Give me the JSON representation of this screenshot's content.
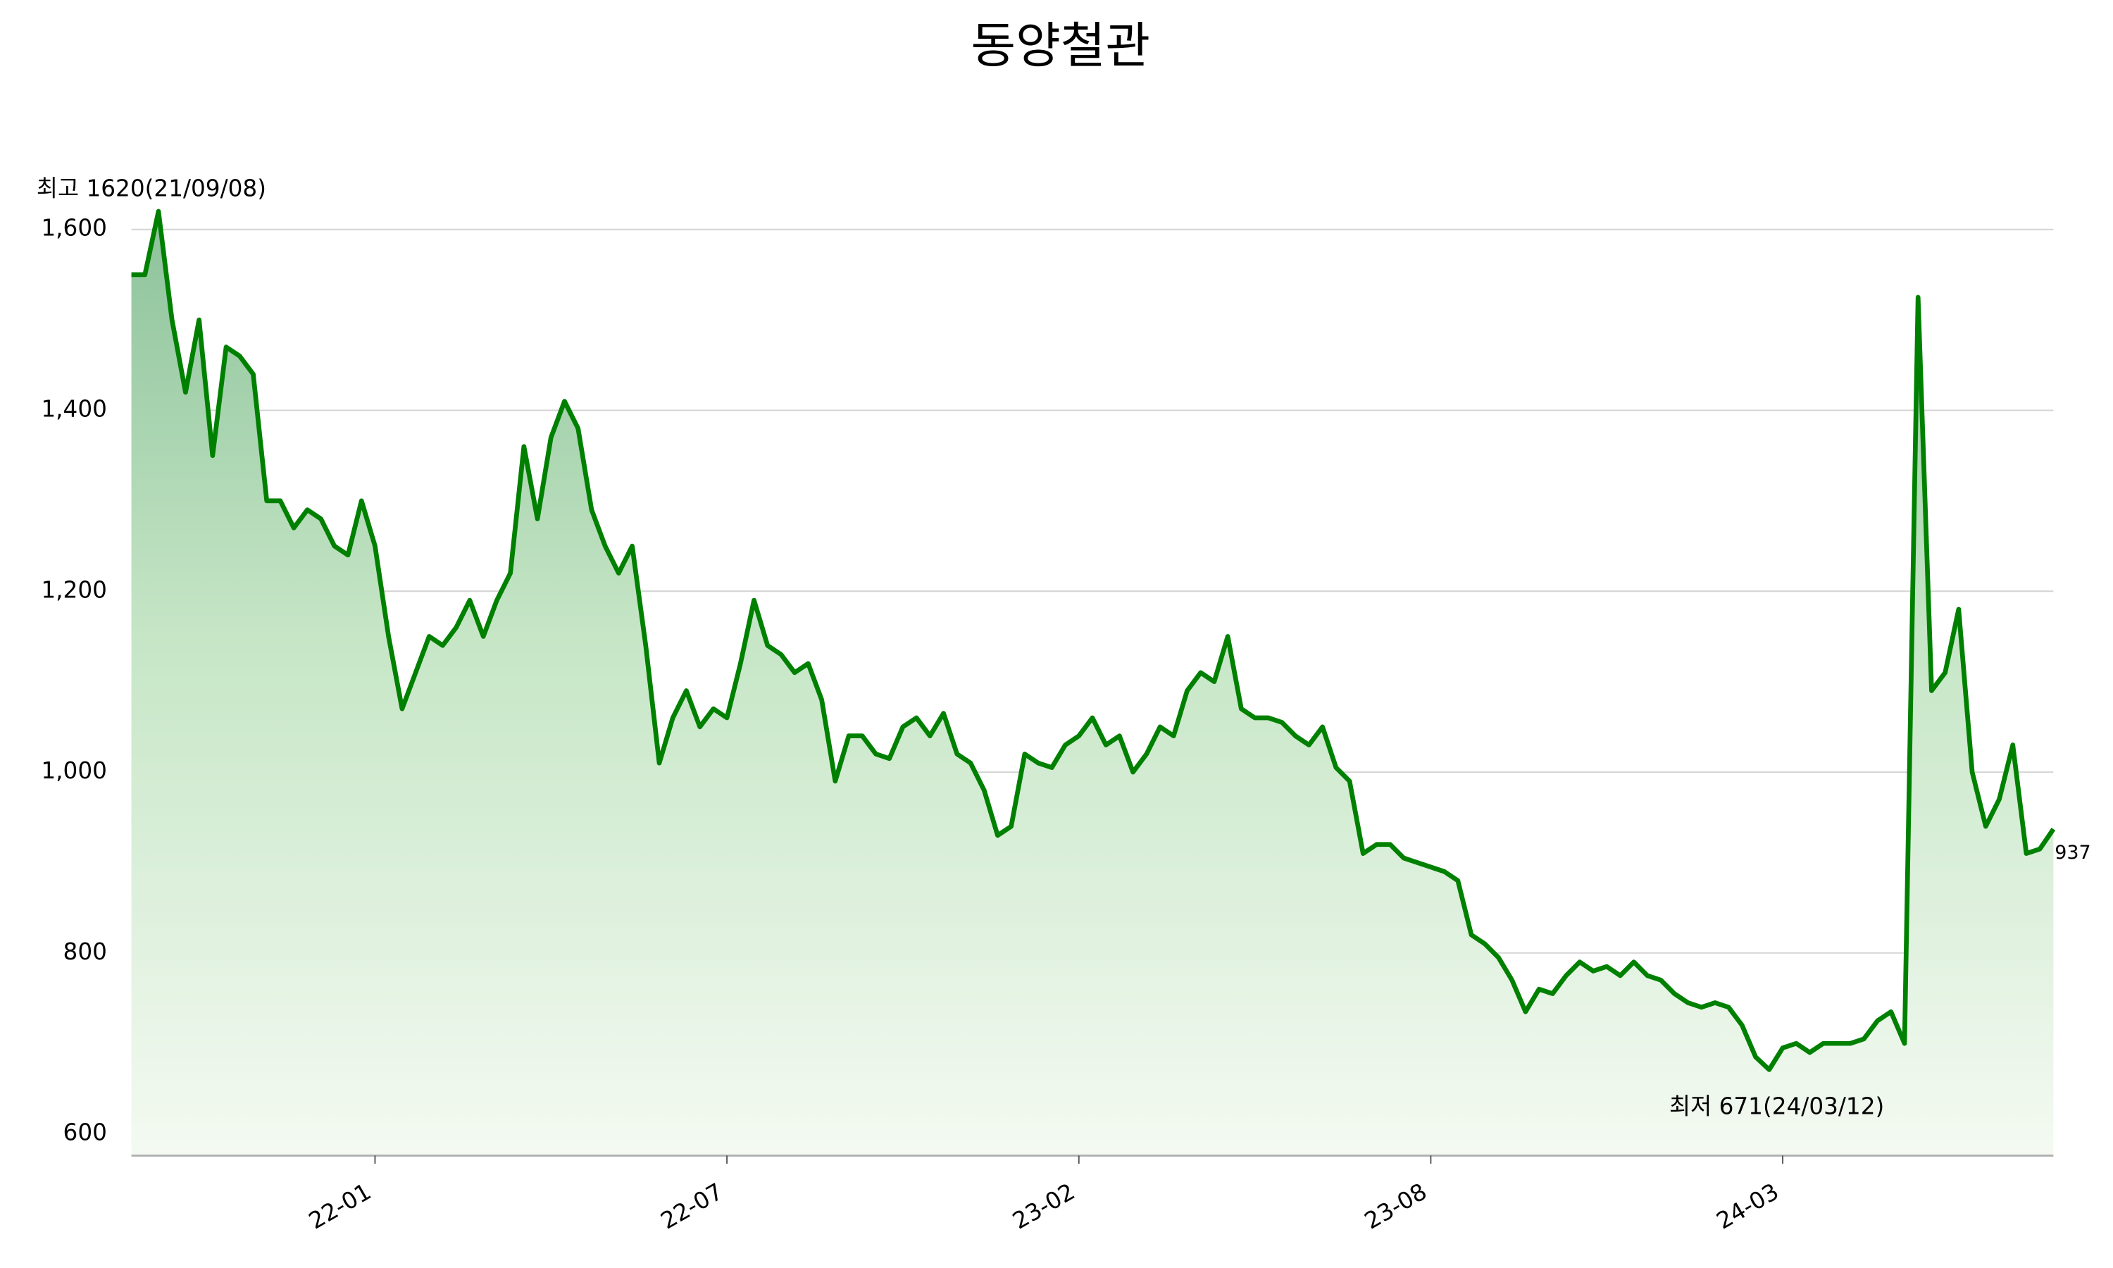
{
  "chart_data": {
    "type": "line",
    "title": "동양철관",
    "categories": [
      null,
      null,
      null,
      null,
      null,
      null,
      null,
      null,
      null,
      null,
      null,
      null,
      null,
      null,
      null,
      null,
      null,
      null,
      "22-01",
      null,
      null,
      null,
      null,
      null,
      null,
      null,
      null,
      null,
      null,
      null,
      null,
      null,
      null,
      null,
      null,
      null,
      null,
      null,
      null,
      null,
      null,
      null,
      null,
      null,
      "22-07",
      null,
      null,
      null,
      null,
      null,
      null,
      null,
      null,
      null,
      null,
      null,
      null,
      null,
      null,
      null,
      null,
      null,
      null,
      null,
      null,
      null,
      null,
      null,
      null,
      null,
      "23-02",
      null,
      null,
      null,
      null,
      null,
      null,
      null,
      null,
      null,
      null,
      null,
      null,
      null,
      null,
      null,
      null,
      null,
      null,
      null,
      null,
      null,
      null,
      null,
      null,
      null,
      "23-08",
      null,
      null,
      null,
      null,
      null,
      null,
      null,
      null,
      null,
      null,
      null,
      null,
      null,
      null,
      null,
      null,
      null,
      null,
      null,
      null,
      null,
      null,
      null,
      null,
      null,
      "24-03",
      null,
      null,
      null,
      null,
      null,
      null,
      null,
      null,
      null,
      null,
      null,
      null,
      null,
      null,
      null,
      null,
      null,
      null,
      null,
      null
    ],
    "values": [
      1550,
      1550,
      1620,
      1500,
      1420,
      1500,
      1350,
      1470,
      1460,
      1440,
      1300,
      1300,
      1270,
      1290,
      1280,
      1250,
      1240,
      1300,
      1250,
      1150,
      1070,
      1110,
      1150,
      1140,
      1160,
      1190,
      1150,
      1190,
      1220,
      1360,
      1280,
      1370,
      1410,
      1380,
      1290,
      1250,
      1220,
      1250,
      1140,
      1010,
      1060,
      1090,
      1050,
      1070,
      1060,
      1120,
      1190,
      1140,
      1130,
      1110,
      1120,
      1080,
      990,
      1040,
      1040,
      1020,
      1015,
      1050,
      1060,
      1040,
      1065,
      1020,
      1010,
      980,
      930,
      940,
      1020,
      1010,
      1005,
      1030,
      1040,
      1060,
      1030,
      1040,
      1000,
      1020,
      1050,
      1040,
      1090,
      1110,
      1100,
      1150,
      1070,
      1060,
      1060,
      1055,
      1040,
      1030,
      1050,
      1005,
      990,
      910,
      920,
      920,
      905,
      900,
      895,
      890,
      880,
      820,
      810,
      795,
      770,
      735,
      760,
      755,
      775,
      790,
      780,
      785,
      775,
      790,
      775,
      770,
      755,
      745,
      740,
      745,
      740,
      720,
      685,
      671,
      695,
      700,
      690,
      700,
      700,
      700,
      705,
      725,
      735,
      700,
      1525,
      1090,
      1110,
      1180,
      1000,
      940,
      970,
      1030,
      910,
      915,
      937
    ],
    "color": "#008000",
    "ylim": [
      576,
      1650
    ],
    "yticks": [
      {
        "value": 600,
        "label": "600"
      },
      {
        "value": 800,
        "label": "800"
      },
      {
        "value": 1000,
        "label": "1,000"
      },
      {
        "value": 1200,
        "label": "1,200"
      },
      {
        "value": 1400,
        "label": "1,400"
      },
      {
        "value": 1600,
        "label": "1,600"
      }
    ],
    "grid": true,
    "high_label": "최고 1620(21/09/08)",
    "high_color": "#ff0000",
    "low_label": "최저 671(24/03/12)",
    "low_color": "#0000ff",
    "last_label": "937"
  }
}
